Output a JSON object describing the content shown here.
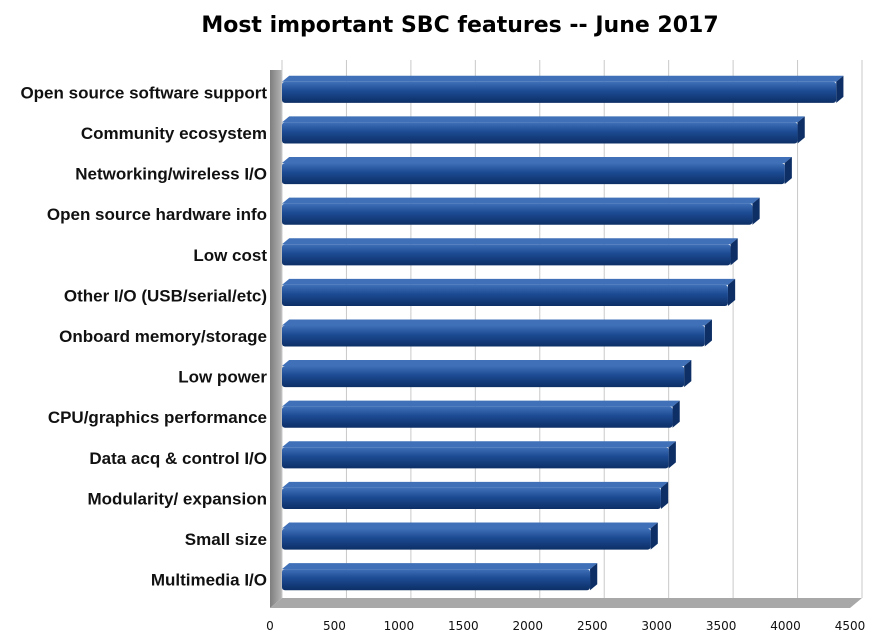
{
  "chart_data": {
    "type": "bar",
    "orientation": "horizontal",
    "title": "Most important SBC features -- June 2017",
    "categories": [
      "Open source software support",
      "Community ecosystem",
      "Networking/wireless I/O",
      "Open source hardware info",
      "Low cost",
      "Other I/O (USB/serial/etc)",
      "Onboard memory/storage",
      "Low power",
      "CPU/graphics performance",
      "Data acq & control I/O",
      "Modularity/ expansion",
      "Small size",
      "Multimedia I/O"
    ],
    "values": [
      4300,
      4000,
      3900,
      3650,
      3480,
      3460,
      3280,
      3120,
      3030,
      3000,
      2940,
      2860,
      2390
    ],
    "xlim": [
      0,
      4500
    ],
    "xticks": [
      "0",
      "500",
      "1000",
      "1500",
      "2000",
      "2500",
      "3000",
      "3500",
      "4000",
      "4500"
    ],
    "grid": true,
    "legend": "none",
    "colors": {
      "bar": "#1c4a92",
      "bar_top": "#3f70b8",
      "bar_dark": "#0d2f66",
      "grid": "#c8c8c8",
      "wall": "#9a9a9a"
    }
  }
}
